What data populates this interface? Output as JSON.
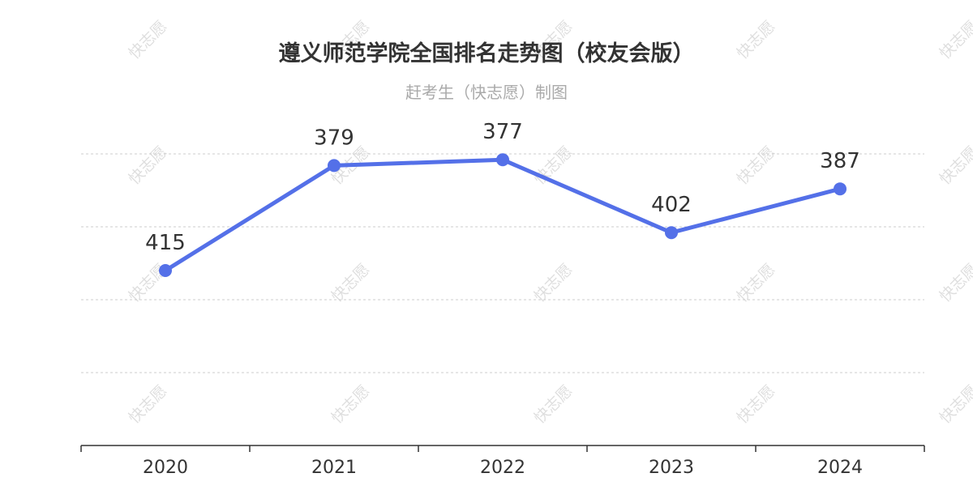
{
  "title": "遵义师范学院全国排名走势图（校友会版）",
  "subtitle": "赶考生（快志愿）制图",
  "watermark": "快志愿",
  "colors": {
    "line": "#5470e8",
    "grid": "#cccccc",
    "axis": "#333333",
    "text": "#333333",
    "subtitle": "#aaaaaa"
  },
  "chart_data": {
    "type": "line",
    "title": "遵义师范学院全国排名走势图（校友会版）",
    "subtitle": "赶考生（快志愿）制图",
    "categories": [
      "2020",
      "2021",
      "2022",
      "2023",
      "2024"
    ],
    "series": [
      {
        "values": [
          415,
          379,
          377,
          402,
          387
        ]
      }
    ],
    "y_axis": {
      "inverse": true,
      "labels_visible": false,
      "range": [
        375,
        475
      ]
    },
    "grid": {
      "horizontal": true,
      "style": "dashed"
    },
    "data_labels": true,
    "legend": "none"
  }
}
